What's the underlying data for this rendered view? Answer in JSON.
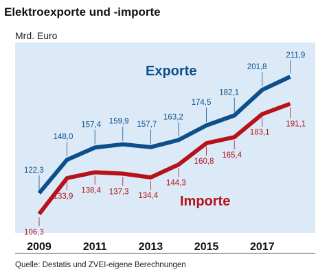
{
  "title": "Elektroexporte und -importe",
  "unit": "Mrd. Euro",
  "source": "Quelle: Destatis und ZVEI-eigene Berechnungen",
  "colors": {
    "exports": "#0d4f8b",
    "imports": "#b5121b",
    "panel": "#dbeaf6",
    "background": "#ffffff"
  },
  "chart_data": {
    "type": "line",
    "x": [
      2009,
      2010,
      2011,
      2012,
      2013,
      2014,
      2015,
      2016,
      2017,
      2018
    ],
    "x_tick_labels": [
      "2009",
      "2011",
      "2013",
      "2015",
      "2017"
    ],
    "grid": false,
    "series": [
      {
        "name": "Exporte",
        "values": [
          122.3,
          148.0,
          157.4,
          159.9,
          157.7,
          163.2,
          174.5,
          182.1,
          201.8,
          211.9
        ],
        "labels": [
          "122,3",
          "148,0",
          "157,4",
          "159,9",
          "157,7",
          "163,2",
          "174,5",
          "182,1",
          "201,8",
          "211,9"
        ]
      },
      {
        "name": "Importe",
        "values": [
          106.3,
          133.9,
          138.4,
          137.3,
          134.4,
          144.3,
          160.8,
          165.4,
          183.1,
          191.1
        ],
        "labels": [
          "106,3",
          "133,9",
          "138,4",
          "137,3",
          "134,4",
          "144,3",
          "160,8",
          "165,4",
          "183,1",
          "191,1"
        ]
      }
    ]
  }
}
